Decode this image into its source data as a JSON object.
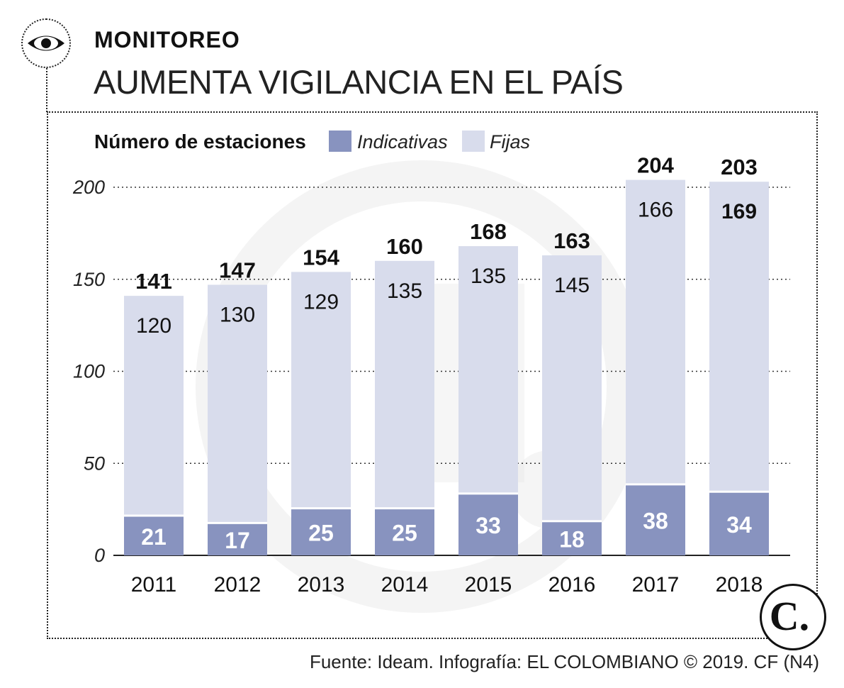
{
  "header": {
    "kicker": "MONITOREO",
    "headline": "AUMENTA VIGILANCIA EN EL PAÍS",
    "icon": "eye-icon"
  },
  "footer": {
    "source": "Fuente: Ideam. Infografía: EL COLOMBIANO © 2019. CF (N4)",
    "logo_icon": "el-colombiano-logo",
    "logo_text": "C."
  },
  "colors": {
    "indicativas": "#8893bf",
    "fijas": "#d8dcec",
    "watermark": "#e6e6e6",
    "text": "#111111"
  },
  "chart_data": {
    "type": "bar",
    "stacked": true,
    "title": "Número de estaciones",
    "xlabel": "",
    "ylabel": "Número de estaciones",
    "ylim": [
      0,
      200
    ],
    "yticks": [
      0,
      50,
      100,
      150,
      200
    ],
    "grid": true,
    "legend_position": "top",
    "categories": [
      "2011",
      "2012",
      "2013",
      "2014",
      "2015",
      "2016",
      "2017",
      "2018"
    ],
    "series": [
      {
        "name": "Indicativas",
        "values": [
          21,
          17,
          25,
          25,
          33,
          18,
          38,
          34
        ]
      },
      {
        "name": "Fijas",
        "values": [
          120,
          130,
          129,
          135,
          135,
          145,
          166,
          169
        ]
      }
    ],
    "totals": [
      141,
      147,
      154,
      160,
      168,
      163,
      204,
      203
    ]
  }
}
